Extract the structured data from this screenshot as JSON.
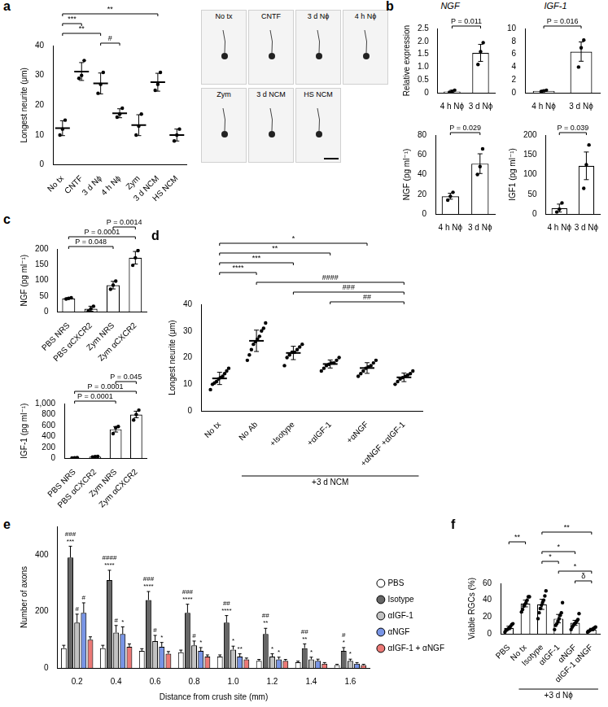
{
  "micrographs": {
    "labels": [
      "No tx",
      "CNTF",
      "3 d Nϕ",
      "4 h Nϕ",
      "Zym",
      "3 d NCM",
      "HS NCM"
    ]
  },
  "chart_data": [
    {
      "panel": "a",
      "type": "strip",
      "y_label": "Longest neurite (μm)",
      "categories": [
        "No tx",
        "CNTF",
        "3 d Nϕ",
        "4 h Nϕ",
        "Zym",
        "3 d NCM",
        "HS NCM"
      ],
      "values": [
        12.3,
        31.3,
        27.3,
        17.3,
        13.3,
        27.7,
        10
      ],
      "errors": [
        2.5,
        3,
        3.5,
        1.5,
        3.5,
        3,
        2
      ],
      "points": [
        [
          10,
          12,
          15
        ],
        [
          29,
          30,
          35
        ],
        [
          24,
          27,
          31
        ],
        [
          16,
          17,
          19
        ],
        [
          10,
          13,
          17
        ],
        [
          25,
          27,
          31
        ],
        [
          8,
          10,
          12
        ]
      ],
      "color": "#000000",
      "ylim": [
        0,
        40
      ],
      "yticks": [
        0,
        10,
        20,
        30,
        40
      ],
      "grid": false,
      "brackets": [
        {
          "from": 2,
          "to": 3,
          "label": "#"
        },
        {
          "from": 0,
          "to": 2,
          "label": "**"
        },
        {
          "from": 0,
          "to": 1,
          "label": "***"
        },
        {
          "from": 0,
          "to": 5,
          "label": "**"
        }
      ]
    },
    {
      "panel": "b",
      "type": "bar",
      "title": "NGF",
      "y_label": "Relative expression",
      "categories": [
        "4 h Nϕ",
        "3 d Nϕ"
      ],
      "values": [
        0.05,
        1.55
      ],
      "errors": [
        0.05,
        0.33
      ],
      "points": [
        [
          0.02,
          0.05,
          0.1
        ],
        [
          1.1,
          1.6,
          1.95
        ]
      ],
      "color": "#000000",
      "ylim": [
        0,
        2.5
      ],
      "yticks": [
        0,
        0.5,
        {
          "value": 1,
          "label": "1.0"
        },
        1.5,
        {
          "value": 2,
          "label": "2.0"
        },
        2.5
      ],
      "grid": false,
      "brackets": [
        {
          "from": 0,
          "to": 1,
          "label": "P = 0.011"
        }
      ]
    },
    {
      "type": "bar",
      "title": "IGF-1",
      "categories": [
        "4 h Nϕ",
        "3 d Nϕ"
      ],
      "values": [
        0.3,
        6.4
      ],
      "errors": [
        0.1,
        1.5
      ],
      "points": [
        [
          0.2,
          0.3,
          0.4
        ],
        [
          4,
          7,
          8.2
        ]
      ],
      "color": "#000000",
      "ylim": [
        0,
        10
      ],
      "yticks": [
        0,
        2,
        4,
        6,
        8,
        10
      ],
      "grid": false,
      "brackets": [
        {
          "from": 0,
          "to": 1,
          "label": "P = 0.016"
        }
      ]
    },
    {
      "type": "bar",
      "y_label": "NGF (pg ml⁻¹)",
      "categories": [
        "4 h Nϕ",
        "3 d Nϕ"
      ],
      "values": [
        18,
        51
      ],
      "errors": [
        3,
        10
      ],
      "points": [
        [
          14,
          18,
          22
        ],
        [
          40,
          48,
          66
        ]
      ],
      "color": "#000000",
      "ylim": [
        0,
        80
      ],
      "yticks": [
        0,
        20,
        40,
        60,
        80
      ],
      "grid": false,
      "brackets": [
        {
          "from": 0,
          "to": 1,
          "label": "P = 0.029"
        }
      ]
    },
    {
      "type": "bar",
      "y_label": "IGF1 (pg ml⁻¹)",
      "categories": [
        "4 h Nϕ",
        "3 d Nϕ"
      ],
      "values": [
        15,
        122
      ],
      "errors": [
        10,
        35
      ],
      "points": [
        [
          5,
          12,
          28
        ],
        [
          65,
          125,
          175
        ]
      ],
      "color": "#000000",
      "ylim": [
        0,
        200
      ],
      "yticks": [
        0,
        50,
        100,
        150,
        200
      ],
      "grid": false,
      "brackets": [
        {
          "from": 0,
          "to": 1,
          "label": "P = 0.039"
        }
      ]
    },
    {
      "panel": "c",
      "type": "bar",
      "y_label": "NGF (pg ml⁻¹)",
      "categories": [
        "PBS NRS",
        "PBS αCXCR2",
        "Zym NRS",
        "Zym αCXCR2"
      ],
      "values": [
        43,
        10,
        85,
        172
      ],
      "errors": [
        2,
        8,
        12,
        20
      ],
      "points": [
        [
          41,
          43,
          45
        ],
        [
          3,
          10,
          18
        ],
        [
          72,
          85,
          98
        ],
        [
          148,
          172,
          195
        ]
      ],
      "color": "#000000",
      "ylim": [
        0,
        200
      ],
      "yticks": [
        0,
        50,
        100,
        150,
        200
      ],
      "grid": false,
      "brackets": [
        {
          "from": 0,
          "to": 2,
          "label": "P = 0.048"
        },
        {
          "from": 0,
          "to": 3,
          "label": "P = 0.0001"
        },
        {
          "from": 2,
          "to": 3,
          "label": "P = 0.0014"
        }
      ]
    },
    {
      "type": "bar",
      "y_label": "IGF-1 (pg ml⁻¹)",
      "categories": [
        "PBS NRS",
        "PBS αCXCR2",
        "Zym NRS",
        "Zym αCXCR2"
      ],
      "values": [
        10,
        30,
        530,
        800
      ],
      "errors": [
        5,
        5,
        50,
        60
      ],
      "points": [
        [
          5,
          10,
          15
        ],
        [
          25,
          30,
          35
        ],
        [
          450,
          560,
          580
        ],
        [
          700,
          800,
          880
        ]
      ],
      "color": "#000000",
      "ylim": [
        0,
        1000
      ],
      "yticks": [
        0,
        200,
        400,
        600,
        800,
        {
          "value": 1000,
          "label": "1,000"
        }
      ],
      "grid": false,
      "brackets": [
        {
          "from": 0,
          "to": 2,
          "label": "P = 0.0001"
        },
        {
          "from": 0,
          "to": 3,
          "label": "P = 0.0001"
        },
        {
          "from": 2,
          "to": 3,
          "label": "P = 0.045"
        }
      ]
    },
    {
      "panel": "d",
      "type": "strip",
      "y_label": "Longest neurite (μm)",
      "categories": [
        "No tx",
        "No Ab",
        "+Isotype",
        "+αIGF-1",
        "+αNGF",
        "+αNGF +αIGF-1"
      ],
      "values": [
        12.2,
        26.3,
        21.75,
        17.6,
        16.1,
        12.6
      ],
      "errors": [
        2.3,
        4,
        2.5,
        1.5,
        2,
        1.6
      ],
      "points": [
        [
          8,
          10,
          10.5,
          11,
          12,
          12.5,
          13,
          14,
          15,
          16
        ],
        [
          19,
          21,
          23,
          25,
          26,
          27,
          28,
          30,
          31,
          33
        ],
        [
          17,
          20,
          21,
          22,
          22,
          23,
          24,
          25
        ],
        [
          15,
          16,
          17,
          17.5,
          18,
          18,
          19,
          20
        ],
        [
          13,
          14,
          15,
          16,
          16.5,
          17,
          18,
          19
        ],
        [
          10,
          11,
          12,
          12.5,
          13,
          13.5,
          14,
          15
        ]
      ],
      "color": "#000000",
      "ylim": [
        0,
        40
      ],
      "yticks": [
        0,
        10,
        20,
        30,
        40
      ],
      "grid": false,
      "brackets": [
        {
          "from": 3,
          "to": 5,
          "label": "##"
        },
        {
          "from": 2,
          "to": 5,
          "label": "###"
        },
        {
          "from": 1,
          "to": 5,
          "label": "####"
        },
        {
          "from": 0,
          "to": 1,
          "label": "****"
        },
        {
          "from": 0,
          "to": 2,
          "label": "***"
        },
        {
          "from": 0,
          "to": 3,
          "label": "**"
        },
        {
          "from": 0,
          "to": 4,
          "label": "*"
        }
      ],
      "group_label": {
        "text": "+3 d NCM",
        "from": 1,
        "to": 5
      }
    },
    {
      "panel": "e",
      "type": "grouped",
      "y_label": "Number of axons",
      "x_label": "Distance from crush site (mm)",
      "categories": [
        "0.2",
        "0.4",
        "0.6",
        "0.8",
        "1.0",
        "1.2",
        "1.4",
        "1.6"
      ],
      "series": [
        {
          "name": "PBS",
          "color": "#ffffff",
          "values": [
            70,
            70,
            60,
            55,
            40,
            25,
            20,
            10
          ],
          "errors": [
            10,
            10,
            8,
            8,
            6,
            5,
            4,
            3
          ]
        },
        {
          "name": "Isotype",
          "color": "#000000",
          "values": [
            390,
            310,
            240,
            195,
            160,
            120,
            70,
            60
          ],
          "errors": [
            40,
            35,
            30,
            30,
            25,
            20,
            15,
            12
          ]
        },
        {
          "name": "αIGF-1",
          "color": "#999999",
          "values": [
            160,
            125,
            95,
            80,
            65,
            40,
            30,
            25
          ],
          "errors": [
            30,
            25,
            20,
            15,
            12,
            10,
            8,
            6
          ]
        },
        {
          "name": "αNGF",
          "color": "#1f4fd6",
          "values": [
            195,
            120,
            75,
            60,
            40,
            30,
            25,
            15
          ],
          "errors": [
            35,
            25,
            15,
            12,
            10,
            8,
            6,
            4
          ]
        },
        {
          "name": "αIGF-1 + αNGF",
          "color": "#e0201b",
          "values": [
            100,
            75,
            50,
            40,
            30,
            25,
            15,
            10
          ],
          "errors": [
            10,
            10,
            8,
            6,
            5,
            5,
            4,
            3
          ]
        }
      ],
      "ylim": [
        0,
        500
      ],
      "yticks": [
        0,
        200,
        400
      ],
      "grid": false,
      "legend": "right",
      "annotations": [
        {
          "category": 0,
          "series": 1,
          "text": "***"
        },
        {
          "category": 0,
          "series": 1,
          "text": "###"
        },
        {
          "category": 0,
          "series": 2,
          "text": "#"
        },
        {
          "category": 0,
          "series": 3,
          "text": "#"
        },
        {
          "category": 1,
          "series": 1,
          "text": "****"
        },
        {
          "category": 1,
          "series": 1,
          "text": "####"
        },
        {
          "category": 1,
          "series": 2,
          "text": "#"
        },
        {
          "category": 1,
          "series": 3,
          "text": "*"
        },
        {
          "category": 2,
          "series": 1,
          "text": "****"
        },
        {
          "category": 2,
          "series": 1,
          "text": "###"
        },
        {
          "category": 2,
          "series": 2,
          "text": "#"
        },
        {
          "category": 2,
          "series": 3,
          "text": "*"
        },
        {
          "category": 3,
          "series": 1,
          "text": "****"
        },
        {
          "category": 3,
          "series": 1,
          "text": "###"
        },
        {
          "category": 3,
          "series": 2,
          "text": "#"
        },
        {
          "category": 3,
          "series": 3,
          "text": "*"
        },
        {
          "category": 4,
          "series": 1,
          "text": "****"
        },
        {
          "category": 4,
          "series": 1,
          "text": "##"
        },
        {
          "category": 4,
          "series": 2,
          "text": "*"
        },
        {
          "category": 4,
          "series": 3,
          "text": "**"
        },
        {
          "category": 5,
          "series": 1,
          "text": "**"
        },
        {
          "category": 5,
          "series": 1,
          "text": "##"
        },
        {
          "category": 5,
          "series": 2,
          "text": "*"
        },
        {
          "category": 5,
          "series": 3,
          "text": "*"
        },
        {
          "category": 6,
          "series": 1,
          "text": "**"
        },
        {
          "category": 6,
          "series": 1,
          "text": "##"
        },
        {
          "category": 6,
          "series": 2,
          "text": "*"
        },
        {
          "category": 7,
          "series": 1,
          "text": "*"
        },
        {
          "category": 7,
          "series": 1,
          "text": "#"
        },
        {
          "category": 7,
          "series": 2,
          "text": "*"
        }
      ]
    },
    {
      "panel": "f",
      "type": "bar",
      "y_label": "Viable RGCs (%)",
      "categories": [
        "PBS",
        "No tx",
        "Isotype",
        "αIGF-1",
        "αNGF",
        "αIGF-1 αNGF"
      ],
      "values": [
        7,
        36,
        35,
        18,
        13,
        5
      ],
      "errors": [
        2,
        4,
        6,
        5,
        3,
        1.5
      ],
      "points": [
        [
          2,
          4,
          5,
          6,
          7,
          9,
          11,
          12
        ],
        [
          26,
          29,
          33,
          35,
          37,
          40,
          44,
          44
        ],
        [
          18,
          25,
          30,
          34,
          37,
          40,
          45,
          51
        ],
        [
          5,
          10,
          12,
          15,
          18,
          22,
          25,
          37
        ],
        [
          5,
          8,
          10,
          12,
          13,
          15,
          17,
          24
        ],
        [
          2,
          3,
          4,
          5,
          5,
          6,
          7,
          8
        ]
      ],
      "color": "#000000",
      "ylim": [
        0,
        60
      ],
      "yticks": [
        0,
        20,
        40,
        60
      ],
      "grid": false,
      "brackets": [
        {
          "from": 4,
          "to": 5,
          "label": "δ"
        },
        {
          "from": 3,
          "to": 5,
          "label": "*"
        },
        {
          "from": 2,
          "to": 3,
          "label": "*"
        },
        {
          "from": 2,
          "to": 4,
          "label": "*"
        },
        {
          "from": 0,
          "to": 1,
          "label": "**"
        },
        {
          "from": 2,
          "to": 5,
          "label": "**"
        }
      ],
      "group_label": {
        "text": "+3 d Nϕ",
        "from": 1,
        "to": 5
      }
    }
  ]
}
